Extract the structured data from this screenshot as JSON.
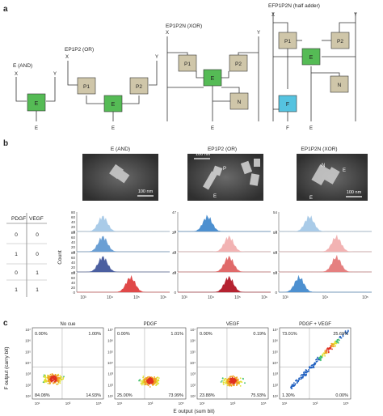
{
  "panel_labels": {
    "a": "a",
    "b": "b",
    "c": "c"
  },
  "panel_a": {
    "circuits": [
      {
        "title": "E (AND)",
        "inputs": [
          "X",
          "Y"
        ],
        "nodes": [
          "E"
        ],
        "outputs": [
          "E"
        ]
      },
      {
        "title": "EP1P2 (OR)",
        "inputs": [
          "X",
          "Y"
        ],
        "nodes": [
          "P1",
          "P2",
          "E"
        ],
        "outputs": [
          "E"
        ]
      },
      {
        "title": "EP1P2N (XOR)",
        "inputs": [
          "X",
          "Y"
        ],
        "nodes": [
          "P1",
          "P2",
          "E",
          "N"
        ],
        "outputs": [
          "E"
        ]
      },
      {
        "title": "EFP1P2N (half adder)",
        "inputs": [
          "X",
          "Y"
        ],
        "nodes": [
          "P1",
          "P2",
          "E",
          "N",
          "F"
        ],
        "outputs": [
          "F",
          "E"
        ]
      }
    ],
    "colors": {
      "protein": "#cfc6a9",
      "sensor": "#55bb55",
      "fluor": "#55c3e0",
      "line": "#333333"
    }
  },
  "panel_b": {
    "micrographs": [
      {
        "title": "E (AND)",
        "scale": "100 nm",
        "labels": []
      },
      {
        "title": "EP1P2 (OR)",
        "scale": "100 nm",
        "labels": [
          "P",
          "E"
        ]
      },
      {
        "title": "EP1P2N (XOR)",
        "scale": "100 nm",
        "labels": [
          "N",
          "E",
          "E"
        ]
      }
    ],
    "truth_table": {
      "headers": [
        "PDGF",
        "VEGF"
      ],
      "rows": [
        [
          "0",
          "0"
        ],
        [
          "1",
          "0"
        ],
        [
          "0",
          "1"
        ],
        [
          "1",
          "1"
        ]
      ]
    },
    "ylabel": "Count",
    "histograms": [
      {
        "yticks": [
          [
            "80",
            "60",
            "40",
            "20",
            "0"
          ],
          [
            "80",
            "60",
            "40",
            "20",
            "0"
          ],
          [
            "80",
            "60",
            "40",
            "20",
            "0"
          ],
          [
            "80",
            "60",
            "40",
            "20",
            "0"
          ]
        ],
        "xticks": [
          "10³",
          "10⁴",
          "10⁵",
          "10⁶"
        ],
        "colors": [
          "#a9cbe8",
          "#6a9fd4",
          "#4b5fa0",
          "#e04848"
        ],
        "peaks": [
          0.28,
          0.28,
          0.28,
          0.58
        ]
      },
      {
        "yticks": [
          [
            "47",
            "0"
          ],
          [
            "37",
            "0"
          ],
          [
            "42",
            "0"
          ],
          [
            "40",
            "0"
          ]
        ],
        "xticks": [
          "10³",
          "10⁴",
          "10⁵",
          "10⁶"
        ],
        "colors": [
          "#4d90d0",
          "#f2b3b3",
          "#e06a6a",
          "#b52230"
        ],
        "peaks": [
          0.32,
          0.55,
          0.55,
          0.55
        ]
      },
      {
        "yticks": [
          [
            "54",
            "0"
          ],
          [
            "54",
            "0"
          ],
          [
            "54",
            "0"
          ],
          [
            "54",
            "0"
          ]
        ],
        "xticks": [
          "10³",
          "10⁴",
          "10⁵"
        ],
        "colors": [
          "#a9cbe8",
          "#f2b3b3",
          "#e58080",
          "#4d90d0"
        ],
        "peaks": [
          0.33,
          0.62,
          0.62,
          0.22
        ]
      }
    ]
  },
  "panel_c": {
    "xlabel": "E output (sum bit)",
    "ylabel": "F output (carry bit)",
    "yticks": [
      "10⁷",
      "10⁶",
      "10⁵",
      "10⁴",
      "10³",
      "10²",
      "10¹"
    ],
    "xticks": [
      "10¹",
      "10³",
      "10⁵"
    ],
    "plots": [
      {
        "title": "No cue",
        "q": [
          "0.00%",
          "1.00%",
          "84.08%",
          "14.93%"
        ]
      },
      {
        "title": "PDGF",
        "q": [
          "0.00%",
          "1.01%",
          "25.00%",
          "73.99%"
        ]
      },
      {
        "title": "VEGF",
        "q": [
          "0.00%",
          "0.19%",
          "23.88%",
          "75.93%"
        ]
      },
      {
        "title": "PDGF + VEGF",
        "q": [
          "73.01%",
          "25.69%",
          "1.30%",
          "0.00%"
        ]
      }
    ]
  }
}
